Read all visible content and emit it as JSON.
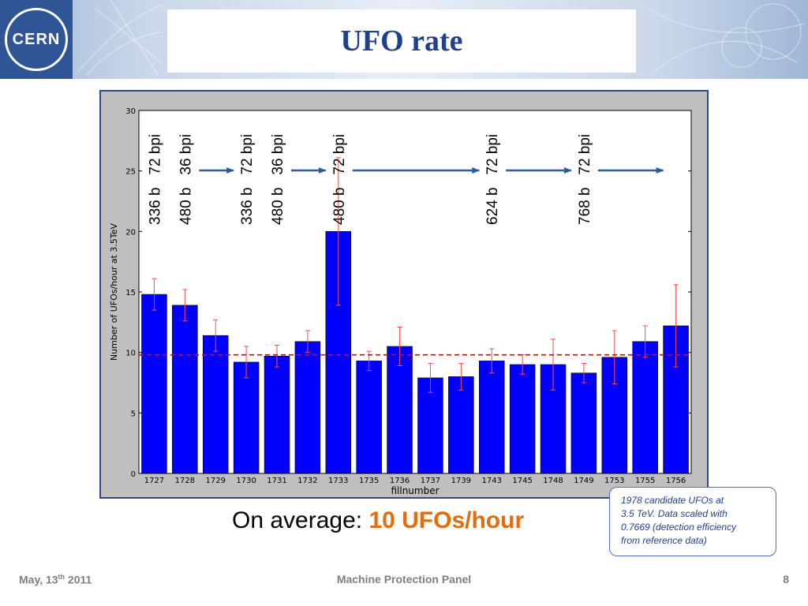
{
  "header": {
    "logo_text": "CERN",
    "title": "UFO rate"
  },
  "colors": {
    "bar": "#0000ff",
    "error": "#ff4c4c",
    "mean_line": "#e00000",
    "annotation_arrow": "#2e5b9a",
    "highlight": "#e46c0a",
    "title": "#1f3f8f"
  },
  "chart_data": {
    "type": "bar",
    "xlabel": "fillnumber",
    "ylabel": "Number of UFOs/hour at 3.5TeV",
    "ylim": [
      0,
      30
    ],
    "yticks": [
      0,
      5,
      10,
      15,
      20,
      25,
      30
    ],
    "categories": [
      "1727",
      "1728",
      "1729",
      "1730",
      "1731",
      "1732",
      "1733",
      "1735",
      "1736",
      "1737",
      "1739",
      "1743",
      "1745",
      "1748",
      "1749",
      "1753",
      "1755",
      "1756"
    ],
    "values": [
      14.8,
      13.9,
      11.4,
      9.2,
      9.7,
      10.9,
      20.0,
      9.3,
      10.5,
      7.9,
      8.0,
      9.3,
      9.0,
      9.0,
      8.3,
      9.6,
      10.9,
      12.2
    ],
    "errors": [
      1.3,
      1.3,
      1.3,
      1.3,
      0.9,
      0.9,
      6.1,
      0.8,
      1.6,
      1.2,
      1.1,
      1.0,
      0.8,
      2.1,
      0.8,
      2.2,
      1.3,
      3.4
    ],
    "mean_line": 9.8,
    "annotations": [
      {
        "text": "336 b   72 bpi",
        "category": "1727"
      },
      {
        "text": "480 b   36 bpi",
        "category": "1728"
      },
      {
        "text": "336 b   72 bpi",
        "category": "1730"
      },
      {
        "text": "480 b   36 bpi",
        "category": "1731"
      },
      {
        "text": "480 b   72 bpi",
        "category": "1733"
      },
      {
        "text": "624 b   72 bpi",
        "category": "1743"
      },
      {
        "text": "768 b   72 bpi",
        "category": "1749"
      }
    ],
    "arrows": [
      {
        "from": "1728",
        "to": "1730"
      },
      {
        "from": "1731",
        "to": "1733"
      },
      {
        "from": "1733",
        "to": "1743"
      },
      {
        "from": "1743",
        "to": "1749"
      },
      {
        "from": "1749",
        "to": "1756"
      }
    ]
  },
  "summary": {
    "prefix": "On average: ",
    "value": "10 UFOs/hour"
  },
  "note": {
    "lines": [
      "1978 candidate UFOs at",
      "3.5 TeV. Data scaled with",
      "0.7669 (detection efficiency",
      "from reference data)"
    ]
  },
  "footer": {
    "date_prefix": "May, 13",
    "date_sup": "th",
    "date_year": " 2011",
    "center": "Machine Protection Panel",
    "page": "8"
  }
}
